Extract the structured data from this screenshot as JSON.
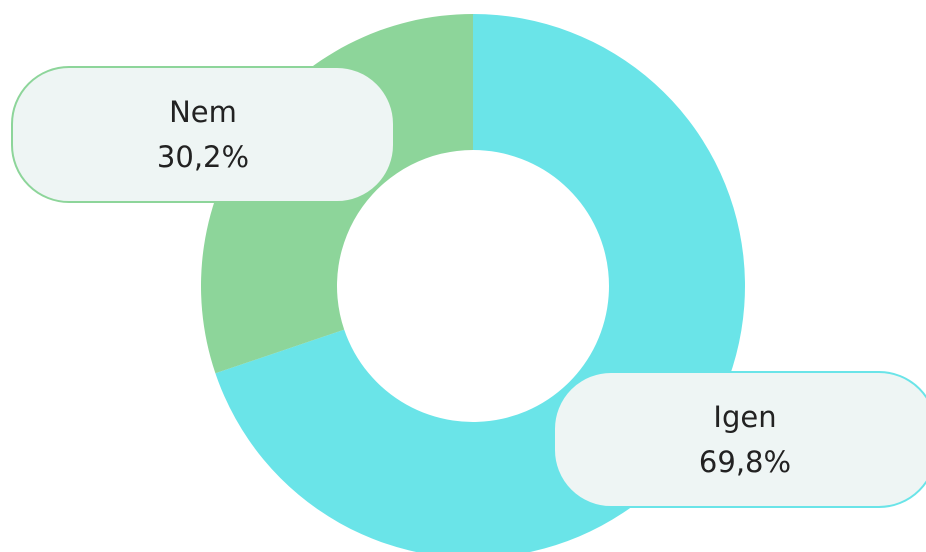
{
  "chart_data": {
    "type": "pie",
    "donut": true,
    "title": "",
    "categories": [
      "Igen",
      "Nem"
    ],
    "values": [
      69.8,
      30.2
    ],
    "value_labels": [
      "69,8%",
      "30,2%"
    ],
    "colors": [
      "#6ae4e8",
      "#8dd59a"
    ],
    "legend": "none",
    "data_labels": "callout"
  }
}
